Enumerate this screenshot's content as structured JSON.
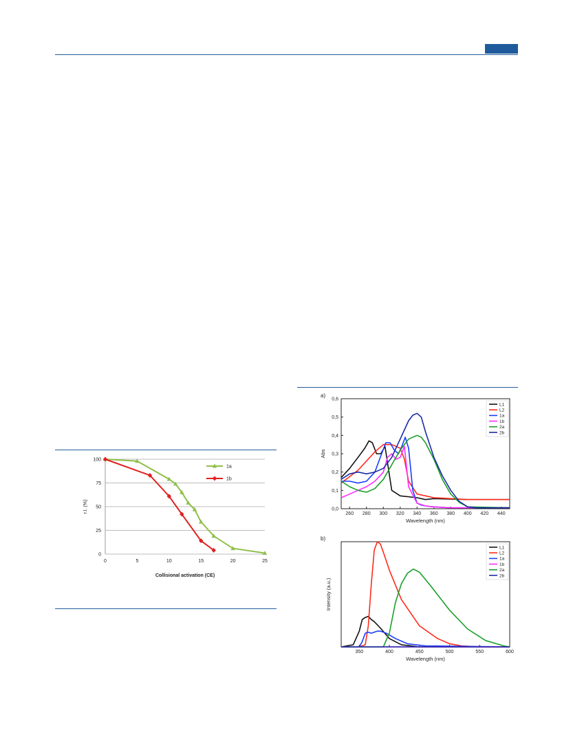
{
  "colors": {
    "accent": "#1f5b9c"
  },
  "chart_data": [
    {
      "type": "line",
      "title": "",
      "xlabel": "Collisional activation (CE)",
      "ylabel": "r.I. (%)",
      "xlim": [
        0,
        25
      ],
      "ylim": [
        0,
        100
      ],
      "xticks": [
        0,
        5,
        10,
        15,
        20,
        25
      ],
      "yticks": [
        0,
        25,
        50,
        75,
        100
      ],
      "grid": "horizontal",
      "legend": "top-right",
      "series": [
        {
          "name": "1a",
          "color": "#8fbf4a",
          "marker": "triangle",
          "x": [
            0,
            5,
            10,
            11,
            12,
            13,
            14,
            15,
            17,
            20,
            25
          ],
          "y": [
            100,
            98,
            79,
            74,
            65,
            54,
            47,
            34,
            19,
            6,
            1
          ]
        },
        {
          "name": "1b",
          "color": "#e02020",
          "marker": "diamond",
          "x": [
            0,
            7,
            10,
            12,
            15,
            17
          ],
          "y": [
            100,
            83,
            61,
            42,
            14,
            4
          ]
        }
      ]
    },
    {
      "type": "line",
      "panel_label": "a)",
      "xlabel": "Wavelength (nm)",
      "ylabel": "Abs",
      "xlim": [
        250,
        450
      ],
      "ylim": [
        0,
        0.6
      ],
      "xticks": [
        "260",
        "280",
        "300",
        "320",
        "340",
        "360",
        "380",
        "400",
        "420",
        "440"
      ],
      "yticks": [
        "0,0",
        "0,1",
        "0,2",
        "0,3",
        "0,4",
        "0,5",
        "0,6"
      ],
      "legend": "top-right",
      "series": [
        {
          "name": "L1",
          "color": "#111111",
          "x": [
            250,
            260,
            270,
            278,
            283,
            287,
            292,
            297,
            302,
            306,
            310,
            320,
            340,
            350,
            360,
            400,
            450
          ],
          "y": [
            0.17,
            0.22,
            0.28,
            0.33,
            0.37,
            0.36,
            0.3,
            0.3,
            0.34,
            0.22,
            0.1,
            0.07,
            0.06,
            0.05,
            0.055,
            0.05,
            0.05
          ]
        },
        {
          "name": "L2",
          "color": "#ff2a1a",
          "x": [
            250,
            270,
            290,
            300,
            310,
            320,
            325,
            330,
            340,
            350,
            360,
            400,
            450
          ],
          "y": [
            0.14,
            0.21,
            0.31,
            0.35,
            0.35,
            0.33,
            0.27,
            0.15,
            0.08,
            0.07,
            0.06,
            0.05,
            0.05
          ]
        },
        {
          "name": "1a",
          "color": "#1a3cff",
          "x": [
            250,
            260,
            270,
            280,
            290,
            298,
            303,
            308,
            313,
            318,
            322,
            326,
            330,
            335,
            340,
            345,
            350,
            360,
            380,
            450
          ],
          "y": [
            0.15,
            0.15,
            0.14,
            0.15,
            0.2,
            0.3,
            0.36,
            0.36,
            0.32,
            0.3,
            0.34,
            0.39,
            0.33,
            0.1,
            0.03,
            0.02,
            0.015,
            0.01,
            0.005,
            0.005
          ]
        },
        {
          "name": "1b",
          "color": "#ff2aff",
          "x": [
            250,
            260,
            270,
            280,
            290,
            300,
            305,
            310,
            315,
            320,
            325,
            330,
            340,
            350,
            360,
            380,
            450
          ],
          "y": [
            0.06,
            0.08,
            0.1,
            0.12,
            0.15,
            0.2,
            0.28,
            0.3,
            0.27,
            0.28,
            0.34,
            0.12,
            0.03,
            0.015,
            0.01,
            0.005,
            0.005
          ]
        },
        {
          "name": "2a",
          "color": "#1a9e2a",
          "x": [
            250,
            260,
            270,
            280,
            290,
            300,
            310,
            320,
            330,
            340,
            345,
            350,
            360,
            370,
            380,
            390,
            400,
            450
          ],
          "y": [
            0.15,
            0.12,
            0.1,
            0.09,
            0.11,
            0.16,
            0.24,
            0.32,
            0.38,
            0.4,
            0.39,
            0.36,
            0.27,
            0.16,
            0.08,
            0.035,
            0.01,
            0.005
          ]
        },
        {
          "name": "2b",
          "color": "#1a2aa6",
          "x": [
            250,
            260,
            270,
            280,
            290,
            300,
            310,
            320,
            330,
            335,
            340,
            345,
            350,
            360,
            370,
            380,
            390,
            400,
            410,
            450
          ],
          "y": [
            0.16,
            0.19,
            0.2,
            0.19,
            0.2,
            0.22,
            0.28,
            0.38,
            0.48,
            0.51,
            0.52,
            0.5,
            0.42,
            0.28,
            0.18,
            0.1,
            0.04,
            0.01,
            0.005,
            0.005
          ]
        }
      ]
    },
    {
      "type": "line",
      "panel_label": "b)",
      "xlabel": "Wavelength (nm)",
      "ylabel": "Intensity (a.u.)",
      "xlim": [
        320,
        600
      ],
      "ylim": [
        0,
        1
      ],
      "xticks": [
        "350",
        "400",
        "450",
        "500",
        "550",
        "600"
      ],
      "yticks": [],
      "legend": "top-right",
      "series": [
        {
          "name": "L1",
          "color": "#111111",
          "x": [
            320,
            340,
            350,
            355,
            360,
            365,
            370,
            375,
            385,
            400,
            420,
            450,
            600
          ],
          "y": [
            0,
            0.02,
            0.15,
            0.26,
            0.28,
            0.29,
            0.26,
            0.24,
            0.18,
            0.08,
            0.02,
            0,
            0
          ]
        },
        {
          "name": "L2",
          "color": "#ff2a1a",
          "x": [
            320,
            350,
            360,
            365,
            370,
            375,
            380,
            385,
            390,
            400,
            420,
            450,
            480,
            500,
            520,
            550,
            600
          ],
          "y": [
            0,
            0,
            0.02,
            0.2,
            0.6,
            0.92,
            1.0,
            0.98,
            0.9,
            0.73,
            0.45,
            0.2,
            0.08,
            0.03,
            0.01,
            0,
            0
          ]
        },
        {
          "name": "1a",
          "color": "#1a3cff",
          "x": [
            320,
            350,
            355,
            360,
            365,
            370,
            375,
            380,
            385,
            395,
            410,
            430,
            460,
            600
          ],
          "y": [
            0,
            0,
            0.05,
            0.13,
            0.14,
            0.13,
            0.14,
            0.15,
            0.15,
            0.13,
            0.08,
            0.03,
            0.01,
            0
          ]
        },
        {
          "name": "1b",
          "color": "#ff2aff",
          "x": [
            320,
            600
          ],
          "y": [
            0,
            0
          ]
        },
        {
          "name": "2a",
          "color": "#1a9e2a",
          "x": [
            320,
            390,
            400,
            410,
            420,
            430,
            440,
            450,
            470,
            500,
            530,
            560,
            590,
            600
          ],
          "y": [
            0,
            0,
            0.13,
            0.42,
            0.6,
            0.7,
            0.74,
            0.71,
            0.57,
            0.35,
            0.17,
            0.06,
            0.01,
            0
          ]
        },
        {
          "name": "2b",
          "color": "#1a2aa6",
          "x": [
            320,
            600
          ],
          "y": [
            0,
            0
          ]
        }
      ]
    }
  ]
}
